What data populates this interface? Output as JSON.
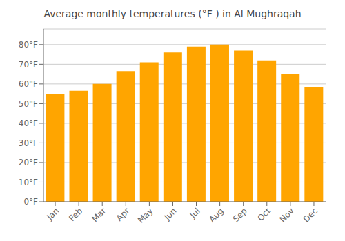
{
  "chart_data": {
    "type": "bar",
    "title": "Average monthly temperatures (°F ) in Al Mughrāqah",
    "categories": [
      "Jan",
      "Feb",
      "Mar",
      "Apr",
      "May",
      "Jun",
      "Jul",
      "Aug",
      "Sep",
      "Oct",
      "Nov",
      "Dec"
    ],
    "values": [
      55,
      56.5,
      60,
      66.5,
      71,
      76,
      79,
      80,
      77,
      72,
      65,
      58.5
    ],
    "color": "#FFA500",
    "ylim": [
      0,
      88
    ],
    "yticks": [
      {
        "value": 0,
        "label": "0°F"
      },
      {
        "value": 10,
        "label": "10°F"
      },
      {
        "value": 20,
        "label": "20°F"
      },
      {
        "value": 30,
        "label": "30°F"
      },
      {
        "value": 40,
        "label": "40°F"
      },
      {
        "value": 50,
        "label": "50°F"
      },
      {
        "value": 60,
        "label": "60°F"
      },
      {
        "value": 70,
        "label": "70°F"
      },
      {
        "value": 80,
        "label": "80°F"
      }
    ],
    "grid": true
  }
}
